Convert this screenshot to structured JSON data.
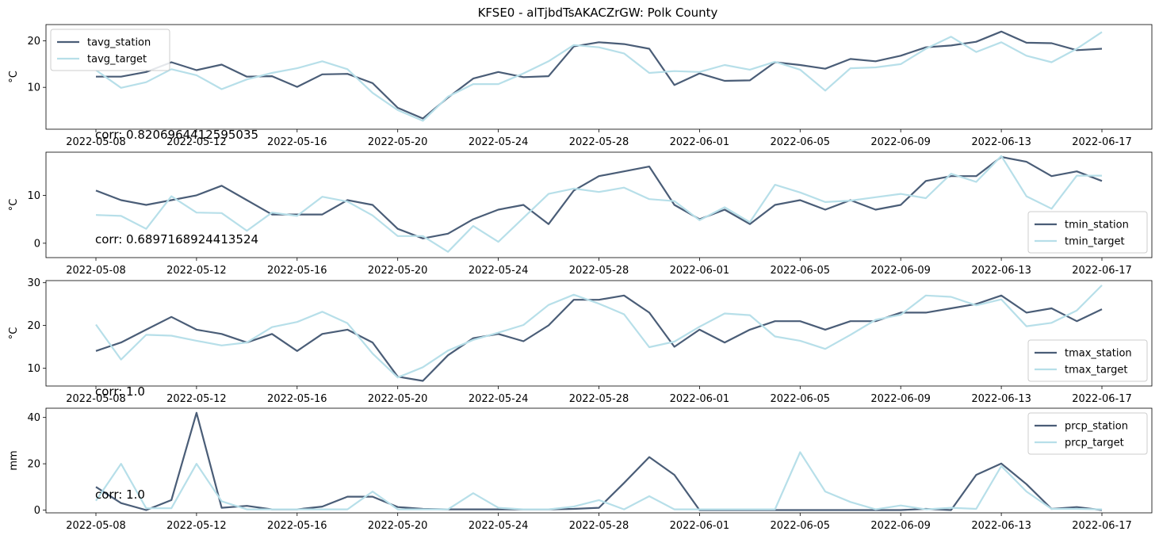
{
  "figure": {
    "title": "KFSE0 - alTjbdTsAKACZrGW: Polk County"
  },
  "colors": {
    "station": "#4a5d77",
    "target": "#b7dfe9"
  },
  "chart_data": [
    {
      "type": "line",
      "ylabel": "°C",
      "xlabel": "",
      "ylim": [
        1.0,
        23.5
      ],
      "yticks": [
        10,
        20
      ],
      "legend_position": "top-left",
      "annotation": "corr: 0.8206964412595035",
      "annotation_anchor": "below-axes",
      "x": [
        "2022-05-08",
        "2022-05-09",
        "2022-05-10",
        "2022-05-11",
        "2022-05-12",
        "2022-05-13",
        "2022-05-14",
        "2022-05-15",
        "2022-05-16",
        "2022-05-17",
        "2022-05-18",
        "2022-05-19",
        "2022-05-20",
        "2022-05-21",
        "2022-05-22",
        "2022-05-23",
        "2022-05-24",
        "2022-05-25",
        "2022-05-26",
        "2022-05-27",
        "2022-05-28",
        "2022-05-29",
        "2022-05-30",
        "2022-05-31",
        "2022-06-01",
        "2022-06-02",
        "2022-06-03",
        "2022-06-04",
        "2022-06-05",
        "2022-06-06",
        "2022-06-07",
        "2022-06-08",
        "2022-06-09",
        "2022-06-10",
        "2022-06-11",
        "2022-06-12",
        "2022-06-13",
        "2022-06-14",
        "2022-06-15",
        "2022-06-16",
        "2022-06-17"
      ],
      "series": [
        {
          "name": "tavg_station",
          "color": "#4a5d77",
          "values": [
            12.3,
            12.3,
            13.3,
            15.4,
            13.7,
            14.9,
            12.3,
            12.4,
            10.1,
            12.8,
            12.9,
            10.9,
            5.6,
            3.3,
            7.8,
            11.9,
            13.3,
            12.2,
            12.4,
            18.8,
            19.7,
            19.3,
            18.3,
            10.5,
            13.0,
            11.4,
            11.5,
            15.4,
            14.8,
            14.0,
            16.1,
            15.6,
            16.8,
            18.6,
            19.0,
            19.8,
            22.0,
            19.6,
            19.5,
            18.0,
            18.3
          ]
        },
        {
          "name": "tavg_target",
          "color": "#b7dfe9",
          "values": [
            13.7,
            9.9,
            11.1,
            13.9,
            12.6,
            9.6,
            11.7,
            13.1,
            14.1,
            15.6,
            13.9,
            8.8,
            5.1,
            2.8,
            8.0,
            10.7,
            10.7,
            13.0,
            15.6,
            19.1,
            18.6,
            17.3,
            13.1,
            13.5,
            13.3,
            14.8,
            13.8,
            15.5,
            13.8,
            9.3,
            14.1,
            14.3,
            15.0,
            18.3,
            20.9,
            17.6,
            19.7,
            16.8,
            15.4,
            18.3,
            21.9
          ]
        }
      ]
    },
    {
      "type": "line",
      "ylabel": "°C",
      "xlabel": "",
      "ylim": [
        -3.0,
        19.0
      ],
      "yticks": [
        0,
        10
      ],
      "legend_position": "lower-right",
      "annotation": "corr: 0.6897168924413524",
      "annotation_anchor": "inside-bottom-left",
      "x": [
        "2022-05-08",
        "2022-05-09",
        "2022-05-10",
        "2022-05-11",
        "2022-05-12",
        "2022-05-13",
        "2022-05-14",
        "2022-05-15",
        "2022-05-16",
        "2022-05-17",
        "2022-05-18",
        "2022-05-19",
        "2022-05-20",
        "2022-05-21",
        "2022-05-22",
        "2022-05-23",
        "2022-05-24",
        "2022-05-25",
        "2022-05-26",
        "2022-05-27",
        "2022-05-28",
        "2022-05-29",
        "2022-05-30",
        "2022-05-31",
        "2022-06-01",
        "2022-06-02",
        "2022-06-03",
        "2022-06-04",
        "2022-06-05",
        "2022-06-06",
        "2022-06-07",
        "2022-06-08",
        "2022-06-09",
        "2022-06-10",
        "2022-06-11",
        "2022-06-12",
        "2022-06-13",
        "2022-06-14",
        "2022-06-15",
        "2022-06-16",
        "2022-06-17"
      ],
      "series": [
        {
          "name": "tmin_station",
          "color": "#4a5d77",
          "values": [
            11,
            9,
            8,
            9,
            10,
            12,
            9,
            6,
            6,
            6,
            9,
            8,
            3,
            1,
            2,
            5,
            7,
            8,
            4,
            11,
            14,
            15,
            16,
            8,
            5,
            7,
            4,
            8,
            9,
            7,
            9,
            7,
            8,
            13,
            14,
            14,
            18,
            17,
            14,
            15,
            13
          ]
        },
        {
          "name": "tmin_target",
          "color": "#b7dfe9",
          "values": [
            5.9,
            5.7,
            3.0,
            9.8,
            6.4,
            6.3,
            2.6,
            6.4,
            5.7,
            9.7,
            8.7,
            5.8,
            1.5,
            1.5,
            -1.8,
            3.6,
            0.3,
            5.3,
            10.3,
            11.4,
            10.7,
            11.6,
            9.2,
            8.8,
            4.8,
            7.5,
            4.4,
            12.2,
            10.6,
            8.6,
            8.9,
            9.6,
            10.3,
            9.4,
            14.5,
            12.8,
            18.2,
            9.8,
            7.2,
            14.1,
            14.1
          ]
        }
      ]
    },
    {
      "type": "line",
      "ylabel": "°C",
      "xlabel": "",
      "ylim": [
        5.8,
        30.5
      ],
      "yticks": [
        10,
        20,
        30
      ],
      "legend_position": "lower-right",
      "annotation": "corr: 1.0",
      "annotation_anchor": "below-axes",
      "x": [
        "2022-05-08",
        "2022-05-09",
        "2022-05-10",
        "2022-05-11",
        "2022-05-12",
        "2022-05-13",
        "2022-05-14",
        "2022-05-15",
        "2022-05-16",
        "2022-05-17",
        "2022-05-18",
        "2022-05-19",
        "2022-05-20",
        "2022-05-21",
        "2022-05-22",
        "2022-05-23",
        "2022-05-24",
        "2022-05-25",
        "2022-05-26",
        "2022-05-27",
        "2022-05-28",
        "2022-05-29",
        "2022-05-30",
        "2022-05-31",
        "2022-06-01",
        "2022-06-02",
        "2022-06-03",
        "2022-06-04",
        "2022-06-05",
        "2022-06-06",
        "2022-06-07",
        "2022-06-08",
        "2022-06-09",
        "2022-06-10",
        "2022-06-11",
        "2022-06-12",
        "2022-06-13",
        "2022-06-14",
        "2022-06-15",
        "2022-06-16",
        "2022-06-17"
      ],
      "series": [
        {
          "name": "tmax_station",
          "color": "#4a5d77",
          "values": [
            14,
            16,
            19,
            22,
            19,
            18,
            16,
            18,
            14,
            18,
            19,
            16,
            8,
            7,
            13,
            17,
            18,
            16.3,
            20,
            26,
            26,
            27,
            23,
            15,
            19,
            16,
            19,
            21,
            21,
            19,
            21,
            21,
            23,
            23,
            24,
            25,
            27,
            23,
            24,
            21,
            23.8
          ]
        },
        {
          "name": "tmax_target",
          "color": "#b7dfe9",
          "values": [
            20.2,
            12.0,
            17.8,
            17.6,
            16.4,
            15.3,
            16.0,
            19.6,
            20.8,
            23.2,
            20.5,
            13.4,
            7.8,
            10.2,
            14.1,
            16.6,
            18.3,
            20.1,
            24.8,
            27.2,
            25.1,
            22.6,
            14.9,
            16.2,
            19.7,
            22.8,
            22.4,
            17.4,
            16.4,
            14.5,
            17.8,
            21.3,
            22.5,
            27.0,
            26.7,
            24.7,
            26.1,
            19.8,
            20.6,
            23.5,
            29.4
          ]
        }
      ]
    },
    {
      "type": "line",
      "ylabel": "mm",
      "xlabel": "",
      "ylim": [
        -1.2,
        44.0
      ],
      "yticks": [
        0,
        20,
        40
      ],
      "legend_position": "top-right",
      "annotation": "corr: 1.0",
      "annotation_anchor": "inside-bottom-left",
      "x": [
        "2022-05-08",
        "2022-05-09",
        "2022-05-10",
        "2022-05-11",
        "2022-05-12",
        "2022-05-13",
        "2022-05-14",
        "2022-05-15",
        "2022-05-16",
        "2022-05-17",
        "2022-05-18",
        "2022-05-19",
        "2022-05-20",
        "2022-05-21",
        "2022-05-22",
        "2022-05-23",
        "2022-05-24",
        "2022-05-25",
        "2022-05-26",
        "2022-05-27",
        "2022-05-28",
        "2022-05-29",
        "2022-05-30",
        "2022-05-31",
        "2022-06-01",
        "2022-06-02",
        "2022-06-03",
        "2022-06-04",
        "2022-06-05",
        "2022-06-06",
        "2022-06-07",
        "2022-06-08",
        "2022-06-09",
        "2022-06-10",
        "2022-06-11",
        "2022-06-12",
        "2022-06-13",
        "2022-06-14",
        "2022-06-15",
        "2022-06-16",
        "2022-06-17"
      ],
      "series": [
        {
          "name": "prcp_station",
          "color": "#4a5d77",
          "values": [
            10,
            3,
            0,
            4.3,
            42,
            1,
            1.8,
            0.3,
            0.3,
            1.5,
            5.8,
            5.8,
            1.3,
            0.5,
            0.3,
            0.3,
            0.3,
            0.3,
            0.3,
            0.5,
            1,
            11.7,
            22.9,
            15.2,
            0,
            0,
            0,
            0,
            0,
            0,
            0,
            0,
            0,
            0.5,
            0,
            15.2,
            20.1,
            11.2,
            0.5,
            1.3,
            0
          ]
        },
        {
          "name": "prcp_target",
          "color": "#b7dfe9",
          "values": [
            4,
            20,
            0.8,
            0.8,
            20,
            3.8,
            0.3,
            0.3,
            0.3,
            0.3,
            0.3,
            8,
            0.3,
            0.3,
            0.3,
            7.3,
            1,
            0.3,
            0.3,
            1.5,
            4.3,
            0.3,
            6,
            0.3,
            0.3,
            0.3,
            0.3,
            0.3,
            25,
            8,
            3.5,
            0.3,
            2,
            0.3,
            1,
            0.5,
            19,
            8,
            0.5,
            0.5,
            0.3
          ]
        }
      ]
    }
  ]
}
